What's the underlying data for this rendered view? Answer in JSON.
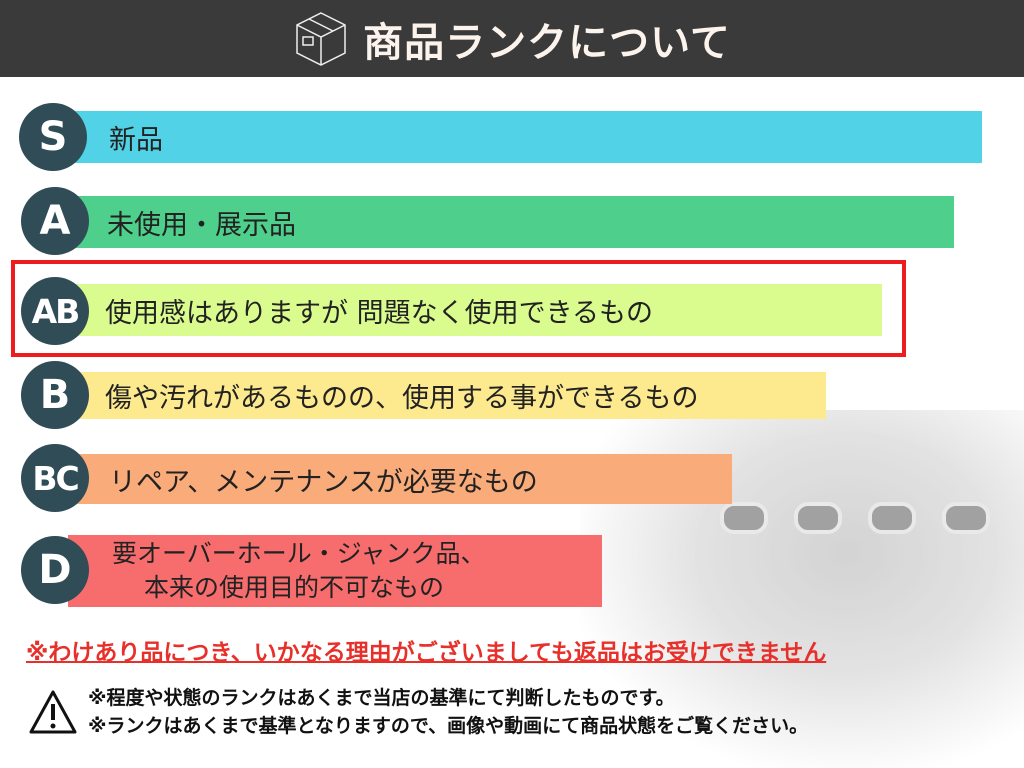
{
  "header": {
    "title": "商品ランクについて",
    "icon": "box-icon"
  },
  "ranks": [
    {
      "grade": "S",
      "label": "新品",
      "color": "#52d2e6"
    },
    {
      "grade": "A",
      "label": "未使用・展示品",
      "color": "#4ecf8b"
    },
    {
      "grade": "AB",
      "label": "使用感はありますが 問題なく使用できるもの",
      "color": "#dafc8e",
      "highlighted": true
    },
    {
      "grade": "B",
      "label": "傷や汚れがあるものの、使用する事ができるもの",
      "color": "#fde98e"
    },
    {
      "grade": "BC",
      "label": "リペア、メンテナンスが必要なもの",
      "color": "#f9ab7a"
    },
    {
      "grade": "D",
      "label": "要オーバーホール・ジャンク品、",
      "label2": "本来の使用目的不可なもの",
      "color": "#f76d6d"
    }
  ],
  "highlight_color": "#ee1c1c",
  "notice": "※わけあり品につき、いかなる理由がございましても返品はお受けできません",
  "warnings": [
    "※程度や状態のランクはあくまで当店の基準にて判断したものです。",
    "※ランクはあくまで基準となりますので、画像や動画にて商品状態をご覧ください。"
  ]
}
